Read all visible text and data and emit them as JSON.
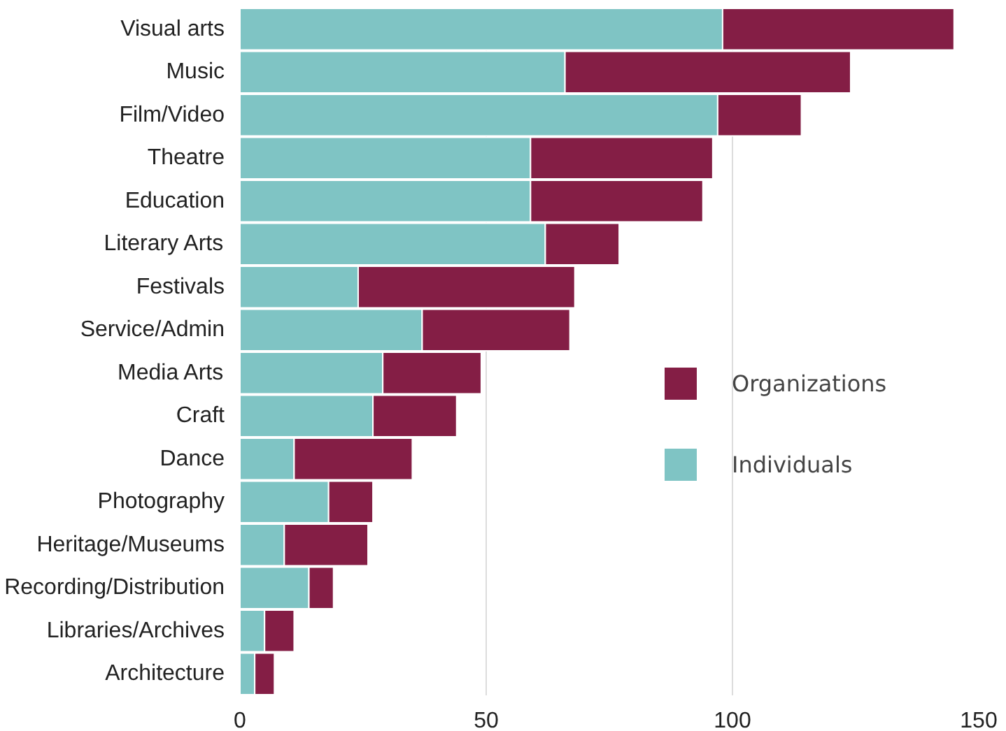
{
  "chart_data": {
    "type": "bar",
    "orientation": "horizontal",
    "stacked": true,
    "categories": [
      "Visual arts",
      "Music",
      "Film/Video",
      "Theatre",
      "Education",
      "Literary Arts",
      "Festivals",
      "Service/Admin",
      "Media Arts",
      "Craft",
      "Dance",
      "Photography",
      "Heritage/Museums",
      "Recording/Distribution",
      "Libraries/Archives",
      "Architecture"
    ],
    "series": [
      {
        "name": "Individuals",
        "color": "#7fc4c4",
        "values": [
          98,
          66,
          97,
          59,
          59,
          62,
          24,
          37,
          29,
          27,
          11,
          18,
          9,
          14,
          5,
          3
        ]
      },
      {
        "name": "Organizations",
        "color": "#841e45",
        "values": [
          47,
          58,
          17,
          37,
          35,
          15,
          44,
          30,
          20,
          17,
          24,
          9,
          17,
          5,
          6,
          4
        ]
      }
    ],
    "xlim": [
      0,
      150
    ],
    "xticks": [
      0,
      50,
      100,
      150
    ],
    "grid": "x",
    "legend": "right"
  }
}
